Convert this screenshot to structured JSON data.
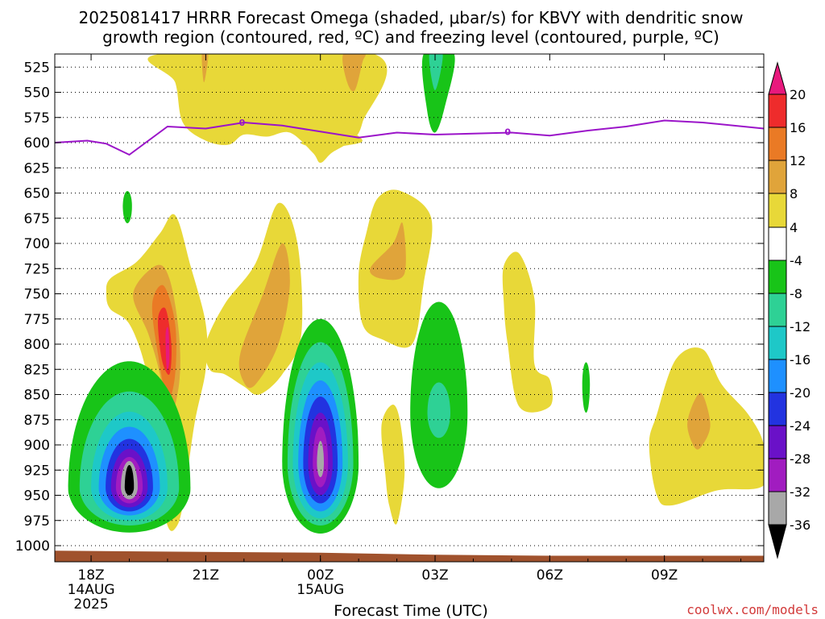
{
  "chart_data": {
    "type": "heatmap",
    "title_line1": "2025081417 HRRR Forecast Omega (shaded, μbar/s) for KBVY with dendritic snow",
    "title_line2": "growth region (contoured, red, ºC) and freezing level (contoured, purple, ºC)",
    "xlabel": "Forecast Time (UTC)",
    "credit": "coolwx.com/models",
    "x_ticks": [
      {
        "hour": 0,
        "label": "18Z",
        "sub1": "14AUG",
        "sub2": "2025"
      },
      {
        "hour": 3,
        "label": "21Z",
        "sub1": "",
        "sub2": ""
      },
      {
        "hour": 6,
        "label": "00Z",
        "sub1": "15AUG",
        "sub2": ""
      },
      {
        "hour": 9,
        "label": "03Z",
        "sub1": "",
        "sub2": ""
      },
      {
        "hour": 12,
        "label": "06Z",
        "sub1": "",
        "sub2": ""
      },
      {
        "hour": 15,
        "label": "09Z",
        "sub1": "",
        "sub2": ""
      }
    ],
    "x_range_hours": [
      -0.95,
      17.6
    ],
    "y_ticks": [
      525,
      550,
      575,
      600,
      625,
      650,
      675,
      700,
      725,
      750,
      775,
      800,
      825,
      850,
      875,
      900,
      925,
      950,
      975,
      1000
    ],
    "y_range_hPa": [
      512,
      1016
    ],
    "grid": true,
    "colorbar": {
      "ticks": [
        "20",
        "16",
        "12",
        "8",
        "4",
        "-4",
        "-8",
        "-12",
        "-16",
        "-20",
        "-24",
        "-28",
        "-32",
        "-36"
      ],
      "colors": {
        "gt20": "#e8197d",
        "16_20": "#ee2c2c",
        "12_16": "#ea7a25",
        "8_12": "#e0a43a",
        "4_8": "#e8d838",
        "neutral": "#ffffff",
        "m8_m4": "#18c418",
        "m12_m8": "#2ed195",
        "m16_m12": "#1ec8c8",
        "m20_m16": "#1e90ff",
        "m24_m20": "#2233e0",
        "m28_m24": "#6a11c8",
        "m32_m28": "#a11cc0",
        "m36_m32": "#a8a8a8",
        "lt_m36": "#000000"
      }
    },
    "freezing_level": {
      "label": "0",
      "label_points": [
        [
          3.95,
          580
        ],
        [
          10.9,
          589
        ]
      ],
      "points": [
        [
          -0.95,
          600
        ],
        [
          -0.1,
          598
        ],
        [
          0.4,
          601
        ],
        [
          1.0,
          612
        ],
        [
          2.0,
          584
        ],
        [
          3.0,
          586
        ],
        [
          4.0,
          580
        ],
        [
          5.0,
          583
        ],
        [
          6.0,
          589
        ],
        [
          7.0,
          595
        ],
        [
          8.0,
          590
        ],
        [
          9.0,
          592
        ],
        [
          10.0,
          591
        ],
        [
          11.0,
          590
        ],
        [
          12.0,
          593
        ],
        [
          13.0,
          588
        ],
        [
          14.0,
          584
        ],
        [
          15.0,
          578
        ],
        [
          16.0,
          580
        ],
        [
          17.6,
          586
        ]
      ]
    },
    "omega_regions": [
      {
        "level": "4_8",
        "points": [
          [
            2.2,
            512
          ],
          [
            2.9,
            535
          ],
          [
            3.1,
            560
          ],
          [
            3.6,
            535
          ],
          [
            3.9,
            512
          ]
        ],
        "note": "upper rising region 1"
      },
      {
        "level": "4_8",
        "points": [
          [
            1.8,
            512
          ],
          [
            2.2,
            540
          ],
          [
            2.4,
            580
          ],
          [
            3.0,
            598
          ],
          [
            3.6,
            602
          ],
          [
            4.0,
            592
          ],
          [
            4.6,
            594
          ],
          [
            5.2,
            590
          ],
          [
            5.8,
            610
          ],
          [
            6.0,
            620
          ],
          [
            6.3,
            610
          ],
          [
            6.8,
            598
          ],
          [
            7.1,
            580
          ],
          [
            7.4,
            512
          ]
        ],
        "note": "upper yellow band"
      },
      {
        "level": "8_12",
        "points": [
          [
            2.9,
            512
          ],
          [
            2.95,
            540
          ],
          [
            3.05,
            520
          ],
          [
            3.05,
            512
          ]
        ]
      },
      {
        "level": "8_12",
        "points": [
          [
            6.6,
            512
          ],
          [
            6.7,
            540
          ],
          [
            6.9,
            548
          ],
          [
            7.1,
            520
          ],
          [
            7.15,
            512
          ]
        ]
      },
      {
        "level": "m8_m4",
        "points": [
          [
            8.7,
            512
          ],
          [
            8.8,
            570
          ],
          [
            9.0,
            590
          ],
          [
            9.25,
            565
          ],
          [
            9.5,
            512
          ]
        ]
      },
      {
        "level": "m12_m8",
        "points": [
          [
            8.85,
            512
          ],
          [
            9.0,
            548
          ],
          [
            9.2,
            512
          ]
        ]
      }
    ],
    "omega_cells": [
      {
        "center": [
          1.0,
          942
        ],
        "layers": [
          {
            "level": "m8_m4",
            "rx": 1.6,
            "ry_top": 125,
            "ry_bot": 45
          },
          {
            "level": "m12_m8",
            "rx": 1.3,
            "ry_top": 95,
            "ry_bot": 38
          },
          {
            "level": "m16_m12",
            "rx": 1.0,
            "ry_top": 75,
            "ry_bot": 33
          },
          {
            "level": "m20_m16",
            "rx": 0.8,
            "ry_top": 60,
            "ry_bot": 28
          },
          {
            "level": "m24_m20",
            "rx": 0.62,
            "ry_top": 48,
            "ry_bot": 24
          },
          {
            "level": "m28_m24",
            "rx": 0.48,
            "ry_top": 38,
            "ry_bot": 20
          },
          {
            "level": "m32_m28",
            "rx": 0.35,
            "ry_top": 30,
            "ry_bot": 16
          },
          {
            "level": "m36_m32",
            "rx": 0.22,
            "ry_top": 26,
            "ry_bot": 12
          },
          {
            "level": "lt_m36",
            "rx": 0.12,
            "ry_top": 22,
            "ry_bot": 8
          }
        ]
      },
      {
        "center": [
          6.0,
          918
        ],
        "layers": [
          {
            "level": "m8_m4",
            "rx": 1.0,
            "ry_top": 143,
            "ry_bot": 70
          },
          {
            "level": "m12_m8",
            "rx": 0.86,
            "ry_top": 120,
            "ry_bot": 62
          },
          {
            "level": "m16_m12",
            "rx": 0.72,
            "ry_top": 100,
            "ry_bot": 55
          },
          {
            "level": "m20_m16",
            "rx": 0.58,
            "ry_top": 82,
            "ry_bot": 48
          },
          {
            "level": "m24_m20",
            "rx": 0.45,
            "ry_top": 66,
            "ry_bot": 40
          },
          {
            "level": "m28_m24",
            "rx": 0.32,
            "ry_top": 50,
            "ry_bot": 32
          },
          {
            "level": "m32_m28",
            "rx": 0.2,
            "ry_top": 36,
            "ry_bot": 24
          },
          {
            "level": "m36_m32",
            "rx": 0.09,
            "ry_top": 22,
            "ry_bot": 14
          }
        ]
      },
      {
        "center": [
          9.1,
          868
        ],
        "layers": [
          {
            "level": "m8_m4",
            "rx": 0.75,
            "ry_top": 110,
            "ry_bot": 75
          },
          {
            "level": "m12_m8",
            "rx": 0.3,
            "ry_top": 30,
            "ry_bot": 25
          }
        ]
      },
      {
        "center": [
          12.95,
          840
        ],
        "layers": [
          {
            "level": "m8_m4",
            "rx": 0.1,
            "ry_top": 22,
            "ry_bot": 28
          }
        ]
      },
      {
        "center": [
          0.95,
          663
        ],
        "layers": [
          {
            "level": "m8_m4",
            "rx": 0.12,
            "ry_top": 15,
            "ry_bot": 17
          }
        ]
      }
    ],
    "rising_regions": [
      {
        "level": "4_8",
        "points": [
          [
            0.4,
            750
          ],
          [
            0.5,
            735
          ],
          [
            1.2,
            718
          ],
          [
            1.8,
            690
          ],
          [
            2.2,
            672
          ],
          [
            2.6,
            722
          ],
          [
            3.0,
            780
          ],
          [
            3.0,
            825
          ],
          [
            2.7,
            880
          ],
          [
            2.4,
            960
          ],
          [
            2.2,
            983
          ],
          [
            2.0,
            980
          ],
          [
            1.8,
            940
          ],
          [
            1.6,
            870
          ],
          [
            1.4,
            820
          ],
          [
            1.0,
            780
          ],
          [
            0.5,
            765
          ]
        ]
      },
      {
        "level": "8_12",
        "points": [
          [
            1.1,
            750
          ],
          [
            1.7,
            722
          ],
          [
            2.05,
            735
          ],
          [
            2.3,
            790
          ],
          [
            2.3,
            840
          ],
          [
            2.0,
            880
          ],
          [
            1.8,
            830
          ],
          [
            1.5,
            790
          ]
        ]
      },
      {
        "level": "12_16",
        "points": [
          [
            1.6,
            760
          ],
          [
            1.9,
            742
          ],
          [
            2.2,
            780
          ],
          [
            2.2,
            830
          ],
          [
            2.0,
            855
          ],
          [
            1.75,
            810
          ]
        ]
      },
      {
        "level": "16_20",
        "points": [
          [
            1.75,
            775
          ],
          [
            1.95,
            765
          ],
          [
            2.1,
            800
          ],
          [
            2.05,
            830
          ],
          [
            1.85,
            815
          ]
        ]
      },
      {
        "level": "gt20",
        "points": [
          [
            1.95,
            790
          ],
          [
            2.02,
            785
          ],
          [
            2.05,
            815
          ],
          [
            1.98,
            825
          ]
        ]
      },
      {
        "level": "4_8",
        "points": [
          [
            3.0,
            800
          ],
          [
            3.5,
            760
          ],
          [
            4.3,
            720
          ],
          [
            4.9,
            660
          ],
          [
            5.4,
            700
          ],
          [
            5.5,
            790
          ],
          [
            5.0,
            830
          ],
          [
            4.4,
            850
          ],
          [
            4.0,
            842
          ],
          [
            3.5,
            830
          ],
          [
            3.1,
            825
          ]
        ]
      },
      {
        "level": "8_12",
        "points": [
          [
            3.9,
            810
          ],
          [
            4.5,
            750
          ],
          [
            5.0,
            700
          ],
          [
            5.2,
            740
          ],
          [
            4.9,
            800
          ],
          [
            4.3,
            840
          ],
          [
            4.0,
            838
          ]
        ]
      },
      {
        "level": "4_8",
        "points": [
          [
            7.2,
            690
          ],
          [
            7.5,
            655
          ],
          [
            8.1,
            648
          ],
          [
            8.9,
            675
          ],
          [
            8.7,
            740
          ],
          [
            8.4,
            800
          ],
          [
            7.6,
            795
          ],
          [
            7.1,
            780
          ],
          [
            7.0,
            730
          ]
        ]
      },
      {
        "level": "8_12",
        "points": [
          [
            7.3,
            725
          ],
          [
            7.9,
            700
          ],
          [
            8.15,
            680
          ],
          [
            8.2,
            730
          ],
          [
            7.6,
            735
          ]
        ]
      },
      {
        "level": "4_8",
        "points": [
          [
            10.8,
            722
          ],
          [
            11.2,
            710
          ],
          [
            11.6,
            755
          ],
          [
            11.6,
            820
          ],
          [
            12.0,
            835
          ],
          [
            12.0,
            862
          ],
          [
            11.2,
            862
          ],
          [
            10.9,
            800
          ],
          [
            10.8,
            760
          ]
        ]
      },
      {
        "level": "4_8",
        "points": [
          [
            14.8,
            870
          ],
          [
            15.3,
            815
          ],
          [
            16.0,
            805
          ],
          [
            16.5,
            840
          ],
          [
            17.2,
            870
          ],
          [
            17.6,
            900
          ],
          [
            17.6,
            940
          ],
          [
            16.4,
            945
          ],
          [
            15.2,
            960
          ],
          [
            14.8,
            950
          ],
          [
            14.6,
            900
          ]
        ]
      },
      {
        "level": "8_12",
        "points": [
          [
            15.6,
            880
          ],
          [
            15.8,
            855
          ],
          [
            16.0,
            850
          ],
          [
            16.2,
            880
          ],
          [
            16.0,
            900
          ],
          [
            15.8,
            903
          ]
        ]
      },
      {
        "level": "4_8",
        "points": [
          [
            7.6,
            880
          ],
          [
            7.9,
            860
          ],
          [
            8.1,
            880
          ],
          [
            8.2,
            930
          ],
          [
            8.0,
            978
          ],
          [
            7.8,
            960
          ],
          [
            7.7,
            930
          ]
        ]
      },
      {
        "level": "4_8",
        "points": [
          [
            5.5,
            600
          ],
          [
            6.2,
            592
          ],
          [
            6.8,
            590
          ],
          [
            7.1,
            598
          ],
          [
            6.8,
            602
          ],
          [
            6.0,
            605
          ]
        ]
      }
    ],
    "ground_profile": [
      [
        -0.95,
        1005
      ],
      [
        6.0,
        1007
      ],
      [
        9.0,
        1009
      ],
      [
        12.0,
        1010
      ],
      [
        17.6,
        1010
      ]
    ]
  }
}
